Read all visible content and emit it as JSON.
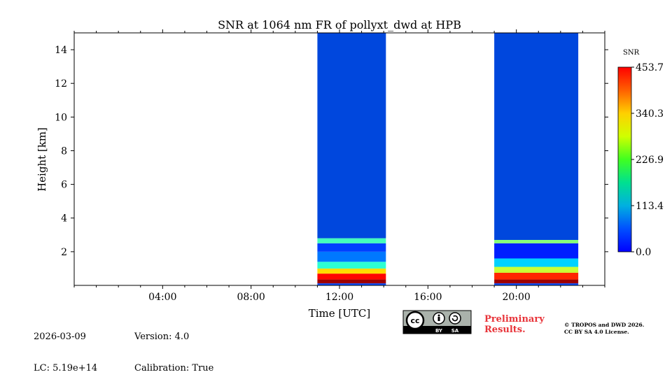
{
  "chart_data": {
    "type": "heatmap",
    "title": "SNR at 1064 nm FR of pollyxt_dwd at HPB",
    "xlabel": "Time [UTC]",
    "ylabel": "Height [km]",
    "xlim_hours": [
      0,
      24
    ],
    "ylim_km": [
      0,
      15
    ],
    "x_ticks": [
      {
        "hour": 4,
        "label": "04:00"
      },
      {
        "hour": 8,
        "label": "08:00"
      },
      {
        "hour": 12,
        "label": "12:00"
      },
      {
        "hour": 16,
        "label": "16:00"
      },
      {
        "hour": 20,
        "label": "20:00"
      }
    ],
    "y_ticks": [
      {
        "km": 2,
        "label": "2"
      },
      {
        "km": 4,
        "label": "4"
      },
      {
        "km": 6,
        "label": "6"
      },
      {
        "km": 8,
        "label": "8"
      },
      {
        "km": 10,
        "label": "10"
      },
      {
        "km": 12,
        "label": "12"
      },
      {
        "km": 14,
        "label": "14"
      }
    ],
    "measurement_periods": [
      {
        "start_hour": 11.0,
        "end_hour": 14.1,
        "profile": [
          {
            "from_km": 0.0,
            "to_km": 0.12,
            "snr": 90
          },
          {
            "from_km": 0.12,
            "to_km": 0.35,
            "snr": 440
          },
          {
            "from_km": 0.35,
            "to_km": 0.7,
            "snr": 395
          },
          {
            "from_km": 0.7,
            "to_km": 1.0,
            "snr": 300
          },
          {
            "from_km": 1.0,
            "to_km": 1.4,
            "snr": 190
          },
          {
            "from_km": 1.4,
            "to_km": 2.0,
            "snr": 110
          },
          {
            "from_km": 2.0,
            "to_km": 2.5,
            "snr": 85
          },
          {
            "from_km": 2.5,
            "to_km": 2.8,
            "snr": 200
          },
          {
            "from_km": 2.8,
            "to_km": 15.0,
            "snr": 10
          }
        ]
      },
      {
        "start_hour": 19.0,
        "end_hour": 22.8,
        "profile": [
          {
            "from_km": 0.0,
            "to_km": 0.12,
            "snr": 90
          },
          {
            "from_km": 0.12,
            "to_km": 0.35,
            "snr": 440
          },
          {
            "from_km": 0.35,
            "to_km": 0.75,
            "snr": 380
          },
          {
            "from_km": 0.75,
            "to_km": 1.1,
            "snr": 260
          },
          {
            "from_km": 1.1,
            "to_km": 1.6,
            "snr": 150
          },
          {
            "from_km": 1.6,
            "to_km": 2.5,
            "snr": 70
          },
          {
            "from_km": 2.5,
            "to_km": 2.7,
            "snr": 230
          },
          {
            "from_km": 2.7,
            "to_km": 15.0,
            "snr": 10
          }
        ]
      }
    ],
    "colorbar": {
      "label": "SNR",
      "min": 0.0,
      "max": 453.7,
      "ticks": [
        "453.7",
        "340.3",
        "226.9",
        "113.4",
        "0.0"
      ],
      "colormap": "jet"
    }
  },
  "footer": {
    "date": "2026-03-09",
    "lc": "LC: 5.19e+14",
    "version": "Version: 4.0",
    "calibration": "Calibration: True",
    "preliminary_line1": "Preliminary",
    "preliminary_line2": "Results.",
    "copyright_line1": "© TROPOS and DWD 2026.",
    "copyright_line2": "CC BY SA 4.0 License.",
    "license_by": "BY",
    "license_sa": "SA",
    "license_cc": "cc"
  },
  "colors": {
    "background_fill": "#0047dd",
    "preliminary_text": "#e8343a"
  }
}
